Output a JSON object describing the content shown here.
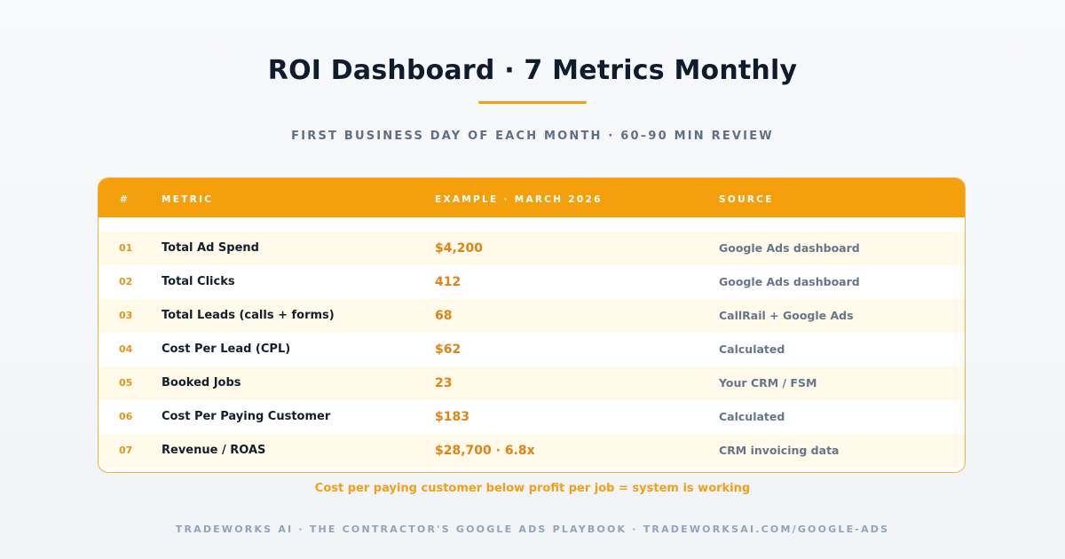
{
  "header": {
    "title": "ROI Dashboard · 7 Metrics Monthly",
    "subtitle": "FIRST BUSINESS DAY OF EACH MONTH · 60–90 MIN REVIEW"
  },
  "table": {
    "columns": [
      "#",
      "METRIC",
      "EXAMPLE · MARCH 2026",
      "SOURCE"
    ],
    "rows": [
      {
        "num": "01",
        "metric": "Total Ad Spend",
        "example": "$4,200",
        "source": "Google Ads dashboard"
      },
      {
        "num": "02",
        "metric": "Total Clicks",
        "example": "412",
        "source": "Google Ads dashboard"
      },
      {
        "num": "03",
        "metric": "Total Leads (calls + forms)",
        "example": "68",
        "source": "CallRail + Google Ads"
      },
      {
        "num": "04",
        "metric": "Cost Per Lead (CPL)",
        "example": "$62",
        "source": "Calculated"
      },
      {
        "num": "05",
        "metric": "Booked Jobs",
        "example": "23",
        "source": "Your CRM / FSM"
      },
      {
        "num": "06",
        "metric": "Cost Per Paying Customer",
        "example": "$183",
        "source": "Calculated"
      },
      {
        "num": "07",
        "metric": "Revenue / ROAS",
        "example": "$28,700 · 6.8x",
        "source": "CRM invoicing data"
      }
    ]
  },
  "footnote": "Cost per paying customer below profit per job = system is working",
  "footer": "TRADEWORKS AI · THE CONTRACTOR'S GOOGLE ADS PLAYBOOK · TRADEWORKSAI.COM/GOOGLE-ADS",
  "colors": {
    "accent": "#f4a00c",
    "title": "#0f1c2e",
    "row_highlight": "#fffaea",
    "value": "#dd8418",
    "muted": "#66758a"
  }
}
